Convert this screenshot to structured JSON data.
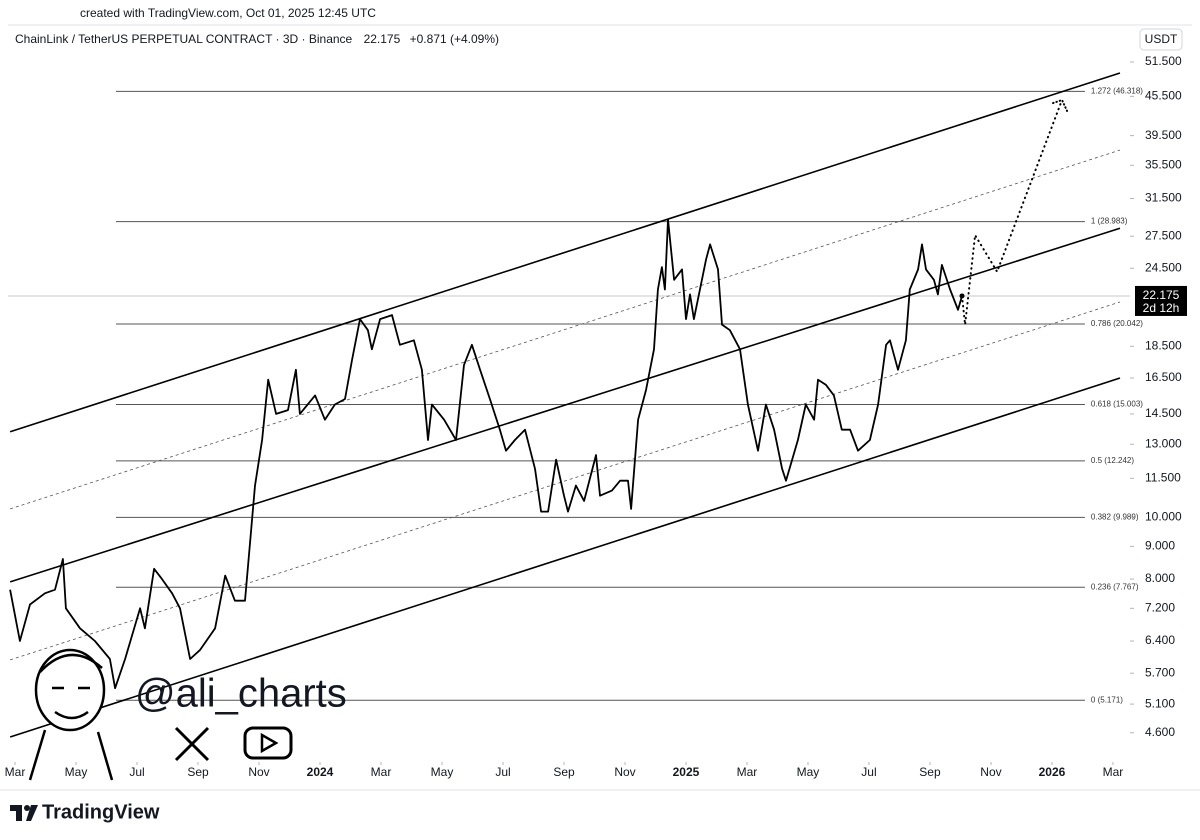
{
  "header": {
    "created": "created with TradingView.com, Oct 01, 2025 12:45 UTC"
  },
  "chart_data": {
    "type": "line",
    "title": "ChainLink / TetherUS PERPETUAL CONTRACT · 3D · Binance",
    "last_price": 22.175,
    "change": "+0.871 (+4.09%)",
    "countdown": "2d 12h",
    "currency": "USDT",
    "log_scale": true,
    "grid": false,
    "xlim": [
      1.77,
      38.46
    ],
    "ylim": [
      4.17,
      59.9
    ],
    "xticks": [
      {
        "value": 2,
        "label": "Mar"
      },
      {
        "value": 4,
        "label": "May"
      },
      {
        "value": 6,
        "label": "Jul"
      },
      {
        "value": 8,
        "label": "Sep"
      },
      {
        "value": 10,
        "label": "Nov"
      },
      {
        "value": 12,
        "label": "2024"
      },
      {
        "value": 14,
        "label": "Mar"
      },
      {
        "value": 16,
        "label": "May"
      },
      {
        "value": 18,
        "label": "Jul"
      },
      {
        "value": 20,
        "label": "Sep"
      },
      {
        "value": 22,
        "label": "Nov"
      },
      {
        "value": 24,
        "label": "2025"
      },
      {
        "value": 26,
        "label": "Mar"
      },
      {
        "value": 28,
        "label": "May"
      },
      {
        "value": 30,
        "label": "Jul"
      },
      {
        "value": 32,
        "label": "Sep"
      },
      {
        "value": 34,
        "label": "Nov"
      },
      {
        "value": 36,
        "label": "2026"
      },
      {
        "value": 38,
        "label": "Mar"
      }
    ],
    "yticks": [
      {
        "value": 51.5,
        "label": "51.500"
      },
      {
        "value": 45.5,
        "label": "45.500"
      },
      {
        "value": 39.5,
        "label": "39.500"
      },
      {
        "value": 35.5,
        "label": "35.500"
      },
      {
        "value": 31.5,
        "label": "31.500"
      },
      {
        "value": 27.5,
        "label": "27.500"
      },
      {
        "value": 24.5,
        "label": "24.500"
      },
      {
        "value": 18.5,
        "label": "18.500"
      },
      {
        "value": 16.5,
        "label": "16.500"
      },
      {
        "value": 14.5,
        "label": "14.500"
      },
      {
        "value": 13,
        "label": "13.000"
      },
      {
        "value": 11.5,
        "label": "11.500"
      },
      {
        "value": 10,
        "label": "10.000"
      },
      {
        "value": 9,
        "label": "9.000"
      },
      {
        "value": 8,
        "label": "8.000"
      },
      {
        "value": 7.2,
        "label": "7.200"
      },
      {
        "value": 6.4,
        "label": "6.400"
      },
      {
        "value": 5.7,
        "label": "5.700"
      },
      {
        "value": 5.1,
        "label": "5.100"
      },
      {
        "value": 4.6,
        "label": "4.600"
      }
    ],
    "x": [
      1.84,
      2.16,
      2.49,
      2.98,
      3.31,
      3.57,
      3.67,
      4.13,
      4.62,
      5.11,
      5.28,
      5.61,
      6.1,
      6.26,
      6.56,
      6.82,
      7.15,
      7.41,
      7.74,
      8.07,
      8.56,
      8.89,
      9.21,
      9.54,
      9.87,
      10.1,
      10.3,
      10.56,
      10.95,
      11.21,
      11.34,
      11.84,
      12.16,
      12.49,
      12.82,
      13.05,
      13.31,
      13.57,
      13.7,
      13.97,
      14.36,
      14.62,
      15.08,
      15.34,
      15.54,
      15.67,
      16.07,
      16.46,
      16.72,
      16.98,
      17.25,
      17.57,
      17.9,
      18.1,
      18.39,
      18.72,
      19.05,
      19.25,
      19.48,
      19.74,
      20.0,
      20.13,
      20.39,
      20.66,
      21.05,
      21.18,
      21.57,
      21.84,
      22.1,
      22.2,
      22.43,
      22.69,
      22.95,
      23.08,
      23.21,
      23.31,
      23.41,
      23.61,
      23.87,
      24.0,
      24.13,
      24.26,
      24.66,
      24.79,
      25.05,
      25.18,
      25.44,
      25.77,
      26.03,
      26.36,
      26.62,
      26.89,
      27.15,
      27.28,
      27.67,
      27.93,
      28.2,
      28.33,
      28.59,
      28.85,
      29.11,
      29.38,
      29.64,
      30.03,
      30.3,
      30.56,
      30.69,
      30.95,
      31.21,
      31.34,
      31.61,
      31.74,
      31.87,
      32.13,
      32.26,
      32.39,
      32.66,
      32.92,
      33.05
    ],
    "series": [
      {
        "color": "#000000",
        "values": [
          7.7,
          6.4,
          7.3,
          7.6,
          7.7,
          8.6,
          7.2,
          6.7,
          6.4,
          6.0,
          5.4,
          6.0,
          7.2,
          6.7,
          8.3,
          8.0,
          7.6,
          7.2,
          6.0,
          6.2,
          6.7,
          8.1,
          7.4,
          7.4,
          11.2,
          13.2,
          16.4,
          14.5,
          14.7,
          17.0,
          14.5,
          15.5,
          14.2,
          15.0,
          15.3,
          17.6,
          20.4,
          19.6,
          18.3,
          20.4,
          20.7,
          18.6,
          18.9,
          17.0,
          13.2,
          15.0,
          14.2,
          13.2,
          17.3,
          18.6,
          17.0,
          15.3,
          13.7,
          12.7,
          13.2,
          13.7,
          11.9,
          10.2,
          10.2,
          12.3,
          10.8,
          10.2,
          11.2,
          10.6,
          12.5,
          10.8,
          11.0,
          11.4,
          11.4,
          10.3,
          14.2,
          15.8,
          18.3,
          22.7,
          24.6,
          22.7,
          29.2,
          23.5,
          24.4,
          20.4,
          22.3,
          20.4,
          25.3,
          26.7,
          24.4,
          20.0,
          19.6,
          18.3,
          15.0,
          12.7,
          15.0,
          13.7,
          11.9,
          11.4,
          13.2,
          15.0,
          14.2,
          16.4,
          16.1,
          15.5,
          13.7,
          13.7,
          12.7,
          13.2,
          15.0,
          18.6,
          18.9,
          17.0,
          18.9,
          22.7,
          24.4,
          26.7,
          24.4,
          23.5,
          22.3,
          24.8,
          22.7,
          21.1,
          22.175
        ]
      }
    ],
    "projection": {
      "color": "#000000",
      "x": [
        33.05,
        33.15,
        33.48,
        34.2,
        36.33
      ],
      "values": [
        22.175,
        20.0,
        27.6,
        24.2,
        44.9
      ]
    },
    "channels": [
      {
        "style": "solid",
        "x": [
          1.84,
          38.23
        ],
        "values": [
          13.6,
          49.5
        ]
      },
      {
        "style": "solid",
        "x": [
          1.84,
          38.23
        ],
        "values": [
          7.92,
          28.3
        ]
      },
      {
        "style": "solid",
        "x": [
          1.84,
          38.23
        ],
        "values": [
          4.53,
          16.5
        ]
      },
      {
        "style": "dashed",
        "x": [
          1.84,
          38.23
        ],
        "values": [
          10.3,
          37.5
        ]
      },
      {
        "style": "dashed",
        "x": [
          1.84,
          38.23
        ],
        "values": [
          5.98,
          21.7
        ]
      }
    ],
    "fib_levels": {
      "x": [
        5.31,
        37.08
      ],
      "levels": [
        {
          "label": "1.272 (46.318)",
          "value": 46.318
        },
        {
          "label": "1 (28.983)",
          "value": 28.983
        },
        {
          "label": "0.786 (20.042)",
          "value": 20.042
        },
        {
          "label": "0.618 (15.003)",
          "value": 15.003
        },
        {
          "label": "0.5 (12.242)",
          "value": 12.242
        },
        {
          "label": "0.382 (9.989)",
          "value": 9.989
        },
        {
          "label": "0.236 (7.767)",
          "value": 7.767
        },
        {
          "label": "0 (5.171)",
          "value": 5.171
        }
      ]
    }
  },
  "watermark": "@ali_charts",
  "brand": "TradingView"
}
